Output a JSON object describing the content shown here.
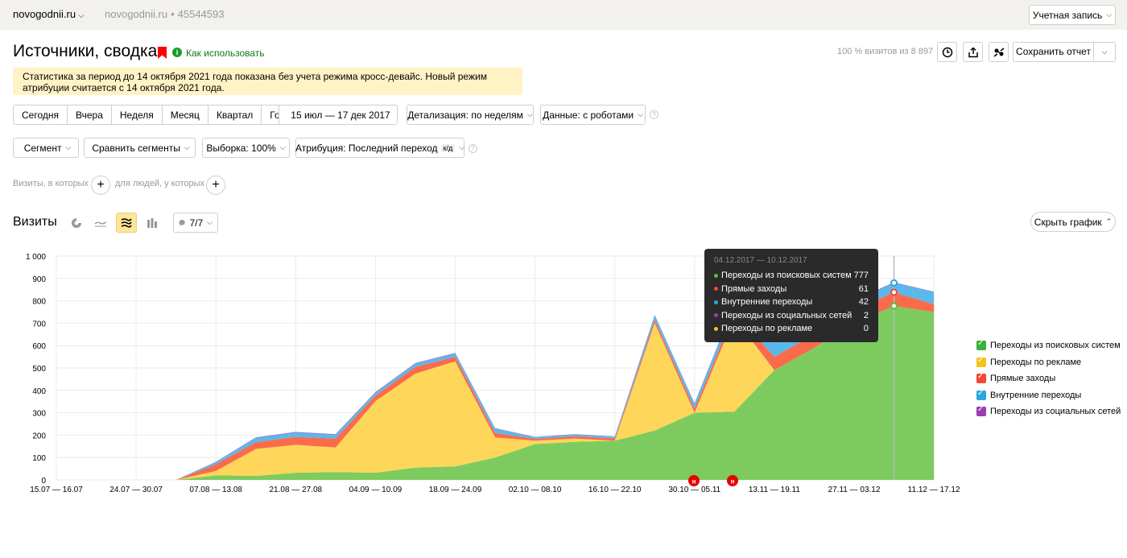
{
  "topbar": {
    "site": "novogodnii.ru",
    "site_secondary": "novogodnii.ru",
    "counter_id": "45544593",
    "separator": "•",
    "account_button": "Учетная запись"
  },
  "header": {
    "title": "Источники, сводка",
    "howto_link": "Как использовать",
    "visits_percent": "100 % визитов из 8 897",
    "save_report": "Сохранить отчет"
  },
  "notice": "Статистика за период до 14 октября 2021 года показана без учета режима кросс-девайс. Новый режим атрибуции считается с 14 октября 2021 года.",
  "period_tabs": [
    "Сегодня",
    "Вчера",
    "Неделя",
    "Месяц",
    "Квартал",
    "Год"
  ],
  "date_range": "15 июл — 17 дек 2017",
  "detail": "Детализация: по неделям",
  "data_mode": "Данные: с роботами",
  "segment": "Сегмент",
  "compare_segments": "Сравнить сегменты",
  "sample": "Выборка: 100%",
  "attribution": "Атрибуция: Последний переход",
  "attribution_badge": "к/д",
  "filters": {
    "visits_label": "Визиты, в которых",
    "people_label": "для людей, у которых",
    "plus": "+"
  },
  "chart_header": {
    "title": "Визиты",
    "metrics_count": "7/7",
    "hide_chart": "Скрыть график"
  },
  "tooltip": {
    "title": "04.12.2017 — 10.12.2017",
    "rows": [
      {
        "label": "Переходы из поисковых систем",
        "value": "777",
        "color": "#5bbf3b"
      },
      {
        "label": "Прямые заходы",
        "value": "61",
        "color": "#f04a32"
      },
      {
        "label": "Внутренние переходы",
        "value": "42",
        "color": "#2ea5e0"
      },
      {
        "label": "Переходы из социальных сетей",
        "value": "2",
        "color": "#9b3db3"
      },
      {
        "label": "Переходы по рекламе",
        "value": "0",
        "color": "#f5c31c"
      }
    ]
  },
  "legend": [
    {
      "label": "Переходы из поисковых систем",
      "color": "#3bb03b"
    },
    {
      "label": "Переходы по рекламе",
      "color": "#f5c31c"
    },
    {
      "label": "Прямые заходы",
      "color": "#f04a32"
    },
    {
      "label": "Внутренние переходы",
      "color": "#2ea5e0"
    },
    {
      "label": "Переходы из социальных сетей",
      "color": "#9b3db3"
    }
  ],
  "annotation_marker": "н",
  "chart_data": {
    "type": "area",
    "stacked": true,
    "x": [
      "15.07 — 16.07",
      "17.07 — 23.07",
      "24.07 — 30.07",
      "31.07 — 06.08",
      "07.08 — 13.08",
      "14.08 — 20.08",
      "21.08 — 27.08",
      "28.08 — 03.09",
      "04.09 — 10.09",
      "11.09 — 17.09",
      "18.09 — 24.09",
      "25.09 — 01.10",
      "02.10 — 08.10",
      "09.10 — 15.10",
      "16.10 — 22.10",
      "23.10 — 29.10",
      "30.10 — 05.11",
      "06.11 — 12.11",
      "13.11 — 19.11",
      "20.11 — 26.11",
      "27.11 — 03.12",
      "04.12 — 10.12",
      "11.12 — 17.12"
    ],
    "xticks": [
      "15.07 — 16.07",
      "24.07 — 30.07",
      "07.08 — 13.08",
      "21.08 — 27.08",
      "04.09 — 10.09",
      "18.09 — 24.09",
      "02.10 — 08.10",
      "16.10 — 22.10",
      "30.10 — 05.11",
      "13.11 — 19.11",
      "27.11 — 03.12",
      "11.12 — 17.12"
    ],
    "ylim": [
      0,
      1000
    ],
    "yticks": [
      0,
      100,
      200,
      300,
      400,
      500,
      600,
      700,
      800,
      900,
      1000
    ],
    "grid": true,
    "legend_position": "right",
    "series": [
      {
        "name": "Переходы из поисковых систем",
        "color": "#7dcb5e",
        "values": [
          0,
          0,
          0,
          0,
          20,
          18,
          32,
          35,
          32,
          55,
          60,
          100,
          160,
          170,
          175,
          220,
          300,
          305,
          490,
          590,
          700,
          777,
          750
        ]
      },
      {
        "name": "Переходы по рекламе",
        "color": "#fdd65a",
        "values": [
          0,
          0,
          0,
          0,
          20,
          120,
          125,
          110,
          320,
          420,
          470,
          90,
          15,
          15,
          0,
          480,
          0,
          420,
          0,
          0,
          0,
          0,
          0
        ]
      },
      {
        "name": "Прямые заходы",
        "color": "#fa6b4b",
        "values": [
          0,
          0,
          0,
          0,
          30,
          30,
          35,
          40,
          25,
          30,
          20,
          20,
          8,
          10,
          10,
          15,
          18,
          25,
          60,
          60,
          60,
          61,
          35
        ]
      },
      {
        "name": "Внутренние переходы",
        "color": "#5bb8ea",
        "values": [
          0,
          0,
          0,
          0,
          10,
          20,
          20,
          17,
          13,
          15,
          15,
          20,
          8,
          8,
          8,
          20,
          22,
          35,
          60,
          45,
          40,
          42,
          55
        ]
      },
      {
        "name": "Переходы из социальных сетей",
        "color": "#9b3db3",
        "values": [
          0,
          0,
          0,
          0,
          1,
          2,
          2,
          2,
          2,
          2,
          2,
          1,
          1,
          1,
          1,
          2,
          2,
          2,
          2,
          2,
          2,
          2,
          1
        ]
      }
    ]
  }
}
